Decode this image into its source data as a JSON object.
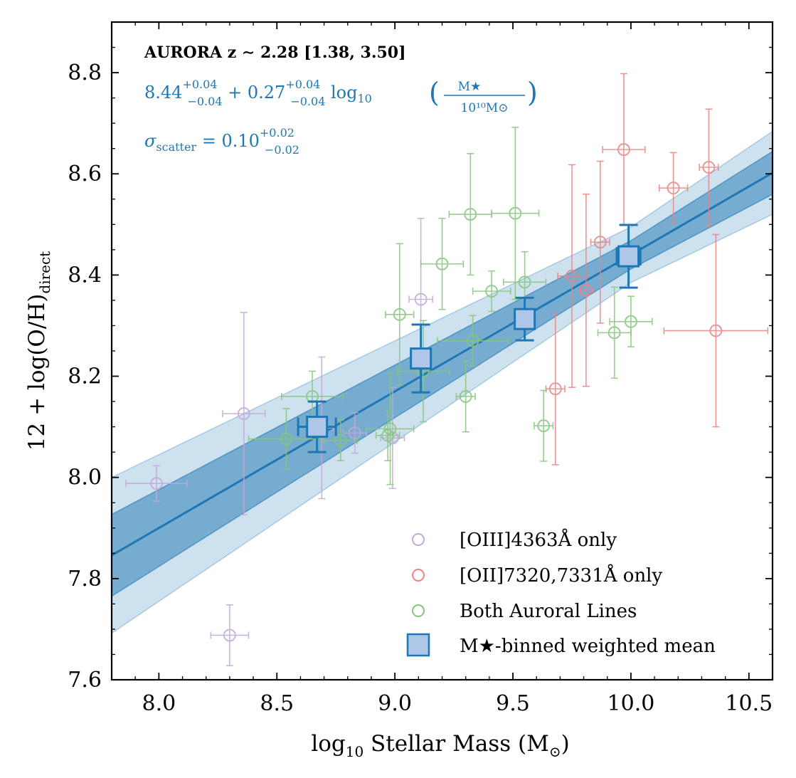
{
  "chart_data": {
    "type": "scatter",
    "title": "",
    "xlabel_main": "log",
    "xlabel_sub": "10",
    "xlabel_rest": " Stellar Mass (M",
    "xlabel_sun": "⊙",
    "xlabel_close": ")",
    "ylabel_main": "12 + log(O/H)",
    "ylabel_sub": "direct",
    "xlim": [
      7.8,
      10.6
    ],
    "ylim": [
      7.6,
      8.9
    ],
    "xticks": [
      8.0,
      8.5,
      9.0,
      9.5,
      10.0,
      10.5
    ],
    "xtick_labels": [
      "8.0",
      "8.5",
      "9.0",
      "9.5",
      "10.0",
      "10.5"
    ],
    "yticks": [
      7.6,
      7.8,
      8.0,
      8.2,
      8.4,
      8.6,
      8.8
    ],
    "ytick_labels": [
      "7.6",
      "7.8",
      "8.0",
      "8.2",
      "8.4",
      "8.6",
      "8.8"
    ],
    "annotation": {
      "title": "AURORA z ∼ 2.28 [1.38, 3.50]",
      "fit_main": "8.44",
      "fit_main_sup": "+0.04",
      "fit_main_sub": "−0.04",
      "fit_slope": " + 0.27",
      "fit_slope_sup": "+0.04",
      "fit_slope_sub": "−0.04",
      "fit_log": " log",
      "fit_log_sub": "10",
      "fit_frac_num": "M★",
      "fit_frac_den": "10¹⁰M⊙",
      "scatter_label": "σ",
      "scatter_label_sub": "scatter",
      "scatter_value": " = 0.10",
      "scatter_sup": "+0.02",
      "scatter_sub": "−0.02"
    },
    "fit": {
      "intercept": 8.44,
      "slope": 0.27,
      "pivot": 10.0,
      "band_inner_half_width_at_pivot": 0.028,
      "band_inner_slope_spread": 0.024,
      "band_outer_half_width_at_pivot": 0.055,
      "band_outer_slope_spread": 0.045
    },
    "series": [
      {
        "name": "[OIII]4363Å only",
        "color": "#c3a8d8",
        "points": [
          {
            "x": 7.99,
            "y": 7.988,
            "xerr": 0.13,
            "yerr": 0.035
          },
          {
            "x": 8.3,
            "y": 7.688,
            "xerr": 0.08,
            "yerr": 0.06
          },
          {
            "x": 8.36,
            "y": 8.126,
            "xerr": 0.09,
            "yerr": 0.2
          },
          {
            "x": 8.69,
            "y": 8.098,
            "xerr": 0.05,
            "yerr": 0.14
          },
          {
            "x": 8.83,
            "y": 8.088,
            "xerr": 0.05,
            "yerr": 0.04
          },
          {
            "x": 8.99,
            "y": 8.078,
            "xerr": 0.05,
            "yerr": 0.1
          },
          {
            "x": 9.11,
            "y": 8.352,
            "xerr": 0.05,
            "yerr": 0.16
          }
        ]
      },
      {
        "name": "[OII]7320,7331Å only",
        "color": "#e88484",
        "points": [
          {
            "x": 9.68,
            "y": 8.175,
            "xerr": 0.04,
            "yerr": 0.15
          },
          {
            "x": 9.75,
            "y": 8.398,
            "xerr": 0.06,
            "yerr": 0.22
          },
          {
            "x": 9.81,
            "y": 8.37,
            "xerr": 0.03,
            "yerr": 0.19
          },
          {
            "x": 9.87,
            "y": 8.465,
            "xerr": 0.04,
            "yerr": 0.16
          },
          {
            "x": 9.97,
            "y": 8.648,
            "xerr": 0.09,
            "yerr": 0.15
          },
          {
            "x": 10.18,
            "y": 8.572,
            "xerr": 0.06,
            "yerr": 0.07
          },
          {
            "x": 10.33,
            "y": 8.613,
            "xerr": 0.04,
            "yerr": 0.115
          },
          {
            "x": 10.36,
            "y": 8.29,
            "xerr": 0.22,
            "yerr": 0.19
          }
        ]
      },
      {
        "name": "Both Auroral Lines",
        "color": "#86c67c",
        "points": [
          {
            "x": 8.54,
            "y": 8.076,
            "xerr": 0.16,
            "yerr": 0.06
          },
          {
            "x": 8.65,
            "y": 8.16,
            "xerr": 0.13,
            "yerr": 0.05
          },
          {
            "x": 8.77,
            "y": 8.073,
            "xerr": 0.07,
            "yerr": 0.04
          },
          {
            "x": 8.97,
            "y": 8.083,
            "xerr": 0.05,
            "yerr": 0.05
          },
          {
            "x": 8.98,
            "y": 8.096,
            "xerr": 0.1,
            "yerr": 0.11
          },
          {
            "x": 9.02,
            "y": 8.322,
            "xerr": 0.06,
            "yerr": 0.14
          },
          {
            "x": 9.12,
            "y": 8.21,
            "xerr": 0.11,
            "yerr": 0.1
          },
          {
            "x": 9.2,
            "y": 8.422,
            "xerr": 0.09,
            "yerr": 0.09
          },
          {
            "x": 9.3,
            "y": 8.16,
            "xerr": 0.04,
            "yerr": 0.07
          },
          {
            "x": 9.32,
            "y": 8.52,
            "xerr": 0.09,
            "yerr": 0.12
          },
          {
            "x": 9.33,
            "y": 8.27,
            "xerr": 0.15,
            "yerr": 0.05
          },
          {
            "x": 9.41,
            "y": 8.368,
            "xerr": 0.08,
            "yerr": 0.04
          },
          {
            "x": 9.51,
            "y": 8.522,
            "xerr": 0.1,
            "yerr": 0.17
          },
          {
            "x": 9.55,
            "y": 8.386,
            "xerr": 0.09,
            "yerr": 0.06
          },
          {
            "x": 9.63,
            "y": 8.102,
            "xerr": 0.04,
            "yerr": 0.07
          },
          {
            "x": 9.93,
            "y": 8.286,
            "xerr": 0.07,
            "yerr": 0.09
          },
          {
            "x": 10.0,
            "y": 8.308,
            "xerr": 0.09,
            "yerr": 0.05
          }
        ]
      }
    ],
    "binned": {
      "name": "M★-binned weighted mean",
      "face_color": "#aec7e8",
      "edge_color": "#1f77b4",
      "points": [
        {
          "x": 8.67,
          "y": 8.1,
          "xerr": 0.08,
          "yerr": 0.05
        },
        {
          "x": 9.11,
          "y": 8.235,
          "xerr": 0.03,
          "yerr": 0.067
        },
        {
          "x": 9.55,
          "y": 8.313,
          "xerr": 0.03,
          "yerr": 0.042
        },
        {
          "x": 9.99,
          "y": 8.437,
          "xerr": 0.05,
          "yerr": 0.062
        }
      ]
    },
    "legend": {
      "location": "lower-right",
      "entries": [
        "[OIII]4363Å only",
        "[OII]7320,7331Å only",
        "Both Auroral Lines",
        "M★-binned weighted mean"
      ]
    }
  }
}
